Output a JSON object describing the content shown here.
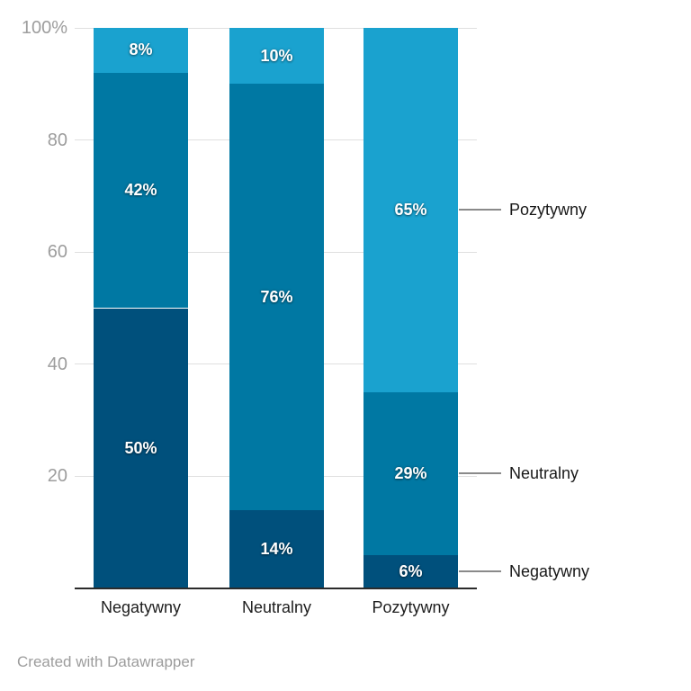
{
  "footer": {
    "text": "Created with Datawrapper"
  },
  "chart_data": {
    "type": "bar",
    "subtype": "stacked-100-vertical",
    "title": "",
    "xlabel": "",
    "ylabel": "",
    "categories": [
      "Negatywny",
      "Neutralny",
      "Pozytywny"
    ],
    "series": [
      {
        "name": "Negatywny",
        "color": "#00507c",
        "values": [
          50,
          14,
          6
        ]
      },
      {
        "name": "Neutralny",
        "color": "#0078a3",
        "values": [
          42,
          76,
          29
        ]
      },
      {
        "name": "Pozytywny",
        "color": "#1aa2cf",
        "values": [
          8,
          10,
          65
        ]
      }
    ],
    "value_suffix": "%",
    "ylim": [
      0,
      100
    ],
    "yticks": [
      {
        "value": 100,
        "label": "100%"
      },
      {
        "value": 80,
        "label": "80"
      },
      {
        "value": 60,
        "label": "60"
      },
      {
        "value": 40,
        "label": "40"
      },
      {
        "value": 20,
        "label": "20"
      }
    ],
    "grid": true,
    "legend_position": "right",
    "legend": [
      "Pozytywny",
      "Neutralny",
      "Negatywny"
    ],
    "colors": {
      "negative": "#00507c",
      "neutral": "#0078a3",
      "positive": "#1aa2cf",
      "grid": "#e0e0e0",
      "axis": "#2b2b2b",
      "tick_text": "#9d9d9d",
      "label_text": "#1d1d1d"
    }
  }
}
